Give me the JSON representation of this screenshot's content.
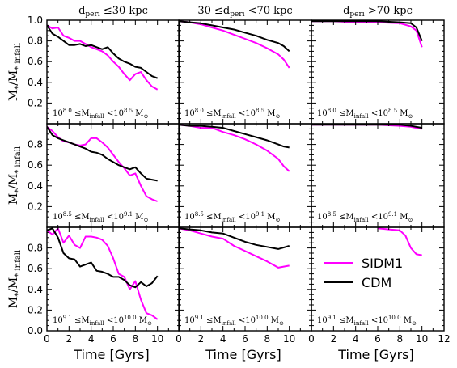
{
  "figure": {
    "column_titles": [
      {
        "pre": "d",
        "sub": "peri",
        "post": " ≤30 kpc"
      },
      {
        "pre": "30 ≤d",
        "sub": "peri",
        "post": " <70 kpc"
      },
      {
        "pre": "d",
        "sub": "peri",
        "post": " >70 kpc"
      }
    ],
    "ylabel": {
      "main": "M",
      "sub1": "*",
      "mid": "/M",
      "sub2": "* infall"
    },
    "xlabel": "Time [Gyrs]",
    "row_annotations": [
      {
        "lo": "8.0",
        "hi": "8.5"
      },
      {
        "lo": "8.5",
        "hi": "9.1"
      },
      {
        "lo": "9.1",
        "hi": "10.0"
      }
    ],
    "annotation_parts": {
      "base": "10",
      "mid": "≤M",
      "mid_sub": "infall",
      "lt": "<10",
      "unit": "M",
      "unit_sub": "⊙"
    },
    "xticks": [
      "0",
      "2",
      "4",
      "6",
      "8",
      "10",
      "12"
    ],
    "yticks_top_row": [
      "0.2",
      "0.4",
      "0.6",
      "0.8",
      "1.0"
    ],
    "yticks_other_rows": [
      "0.2",
      "0.4",
      "0.6",
      "0.8"
    ],
    "bottom_row_extra_ytick": "0.0",
    "legend": [
      {
        "label": "SIDM1",
        "color": "#ff00ff"
      },
      {
        "label": "CDM",
        "color": "#000000"
      }
    ]
  },
  "chart_data": {
    "type": "line",
    "xlim": [
      0,
      12
    ],
    "ylim": [
      0,
      1
    ],
    "colors": {
      "SIDM1": "#ff00ff",
      "CDM": "#000000"
    },
    "panels": [
      {
        "row": 0,
        "col": 0,
        "series": [
          {
            "name": "SIDM1",
            "x": [
              0,
              0.5,
              1,
              1.5,
              2,
              2.5,
              3,
              3.5,
              4,
              4.5,
              5,
              5.5,
              6,
              6.5,
              7,
              7.5,
              8,
              8.5,
              9,
              9.5,
              10
            ],
            "y": [
              0.95,
              0.92,
              0.93,
              0.85,
              0.83,
              0.8,
              0.8,
              0.77,
              0.74,
              0.72,
              0.7,
              0.66,
              0.6,
              0.55,
              0.48,
              0.42,
              0.48,
              0.5,
              0.42,
              0.36,
              0.33
            ]
          },
          {
            "name": "CDM",
            "x": [
              0,
              0.5,
              1,
              1.5,
              2,
              2.5,
              3,
              3.5,
              4,
              4.5,
              5,
              5.5,
              6,
              6.5,
              7,
              7.5,
              8,
              8.5,
              9,
              9.5,
              10
            ],
            "y": [
              0.95,
              0.87,
              0.84,
              0.8,
              0.76,
              0.76,
              0.77,
              0.75,
              0.76,
              0.74,
              0.72,
              0.74,
              0.68,
              0.63,
              0.6,
              0.58,
              0.55,
              0.54,
              0.5,
              0.46,
              0.44
            ]
          }
        ]
      },
      {
        "row": 0,
        "col": 1,
        "series": [
          {
            "name": "SIDM1",
            "x": [
              0,
              1,
              2,
              3,
              4,
              5,
              6,
              7,
              8,
              9,
              9.5,
              10
            ],
            "y": [
              0.99,
              0.98,
              0.96,
              0.93,
              0.9,
              0.86,
              0.82,
              0.78,
              0.73,
              0.67,
              0.62,
              0.54
            ]
          },
          {
            "name": "CDM",
            "x": [
              0,
              1,
              2,
              3,
              4,
              5,
              6,
              7,
              8,
              9,
              9.5,
              10
            ],
            "y": [
              0.99,
              0.98,
              0.97,
              0.95,
              0.93,
              0.91,
              0.88,
              0.85,
              0.81,
              0.78,
              0.75,
              0.7
            ]
          }
        ]
      },
      {
        "row": 0,
        "col": 2,
        "series": [
          {
            "name": "SIDM1",
            "x": [
              0,
              2,
              4,
              6,
              8,
              9,
              9.5,
              10
            ],
            "y": [
              0.99,
              0.99,
              0.98,
              0.98,
              0.97,
              0.94,
              0.9,
              0.74
            ]
          },
          {
            "name": "CDM",
            "x": [
              0,
              2,
              4,
              6,
              8,
              9,
              9.5,
              10
            ],
            "y": [
              0.99,
              0.99,
              0.99,
              0.99,
              0.98,
              0.97,
              0.93,
              0.8
            ]
          }
        ]
      },
      {
        "row": 1,
        "col": 0,
        "series": [
          {
            "name": "SIDM1",
            "x": [
              0,
              0.5,
              1,
              1.5,
              2,
              2.5,
              3,
              3.5,
              4,
              4.5,
              5,
              5.5,
              6,
              6.5,
              7,
              7.5,
              8,
              8.5,
              9,
              9.5,
              10
            ],
            "y": [
              0.97,
              0.93,
              0.87,
              0.83,
              0.82,
              0.8,
              0.79,
              0.8,
              0.86,
              0.86,
              0.82,
              0.77,
              0.7,
              0.63,
              0.57,
              0.5,
              0.52,
              0.4,
              0.3,
              0.27,
              0.25
            ]
          },
          {
            "name": "CDM",
            "x": [
              0,
              0.5,
              1,
              1.5,
              2,
              2.5,
              3,
              3.5,
              4,
              4.5,
              5,
              5.5,
              6,
              6.5,
              7,
              7.5,
              8,
              8.5,
              9,
              9.5,
              10
            ],
            "y": [
              0.97,
              0.89,
              0.86,
              0.84,
              0.82,
              0.8,
              0.78,
              0.76,
              0.73,
              0.72,
              0.7,
              0.66,
              0.63,
              0.6,
              0.58,
              0.56,
              0.58,
              0.52,
              0.47,
              0.46,
              0.45
            ]
          }
        ]
      },
      {
        "row": 1,
        "col": 1,
        "series": [
          {
            "name": "SIDM1",
            "x": [
              0,
              1,
              2,
              3,
              4,
              5,
              6,
              7,
              8,
              9,
              9.5,
              10
            ],
            "y": [
              0.99,
              0.98,
              0.96,
              0.96,
              0.92,
              0.89,
              0.85,
              0.8,
              0.74,
              0.66,
              0.59,
              0.54
            ]
          },
          {
            "name": "CDM",
            "x": [
              0,
              1,
              2,
              3,
              4,
              5,
              6,
              7,
              8,
              9,
              9.5,
              10
            ],
            "y": [
              0.99,
              0.98,
              0.98,
              0.97,
              0.96,
              0.93,
              0.9,
              0.87,
              0.84,
              0.8,
              0.78,
              0.77
            ]
          }
        ]
      },
      {
        "row": 1,
        "col": 2,
        "series": [
          {
            "name": "SIDM1",
            "x": [
              0,
              2,
              4,
              6,
              8,
              9,
              10
            ],
            "y": [
              0.99,
              0.99,
              0.99,
              0.99,
              0.98,
              0.97,
              0.95
            ]
          },
          {
            "name": "CDM",
            "x": [
              0,
              2,
              4,
              6,
              8,
              9,
              10
            ],
            "y": [
              0.99,
              0.99,
              0.99,
              0.99,
              0.99,
              0.98,
              0.96
            ]
          }
        ]
      },
      {
        "row": 2,
        "col": 0,
        "series": [
          {
            "name": "SIDM1",
            "x": [
              0,
              0.5,
              1,
              1.5,
              2,
              2.5,
              3,
              3.5,
              4,
              4.5,
              5,
              5.5,
              6,
              6.5,
              7,
              7.5,
              8,
              8.5,
              9,
              9.5,
              10
            ],
            "y": [
              0.97,
              0.93,
              0.99,
              0.85,
              0.92,
              0.83,
              0.8,
              0.91,
              0.91,
              0.9,
              0.88,
              0.82,
              0.7,
              0.55,
              0.52,
              0.4,
              0.48,
              0.3,
              0.17,
              0.15,
              0.11
            ]
          },
          {
            "name": "CDM",
            "x": [
              0,
              0.5,
              1,
              1.5,
              2,
              2.5,
              3,
              3.5,
              4,
              4.5,
              5,
              5.5,
              6,
              6.5,
              7,
              7.5,
              8,
              8.5,
              9,
              9.5,
              10
            ],
            "y": [
              0.97,
              0.99,
              0.9,
              0.75,
              0.7,
              0.69,
              0.62,
              0.64,
              0.66,
              0.58,
              0.57,
              0.55,
              0.52,
              0.52,
              0.49,
              0.44,
              0.42,
              0.47,
              0.43,
              0.46,
              0.53
            ]
          }
        ]
      },
      {
        "row": 2,
        "col": 1,
        "series": [
          {
            "name": "SIDM1",
            "x": [
              0,
              1,
              2,
              3,
              4,
              5,
              6,
              7,
              8,
              9,
              10
            ],
            "y": [
              0.99,
              0.97,
              0.94,
              0.91,
              0.89,
              0.82,
              0.77,
              0.72,
              0.67,
              0.61,
              0.63
            ]
          },
          {
            "name": "CDM",
            "x": [
              0,
              1,
              2,
              3,
              4,
              5,
              6,
              7,
              8,
              9,
              10
            ],
            "y": [
              0.99,
              0.98,
              0.97,
              0.95,
              0.94,
              0.9,
              0.86,
              0.83,
              0.81,
              0.79,
              0.82
            ]
          }
        ]
      },
      {
        "row": 2,
        "col": 2,
        "series": [
          {
            "name": "SIDM1",
            "x": [
              6,
              7,
              8,
              8.5,
              9,
              9.5,
              10
            ],
            "y": [
              0.99,
              0.98,
              0.97,
              0.92,
              0.8,
              0.74,
              0.73
            ]
          }
        ]
      }
    ]
  }
}
